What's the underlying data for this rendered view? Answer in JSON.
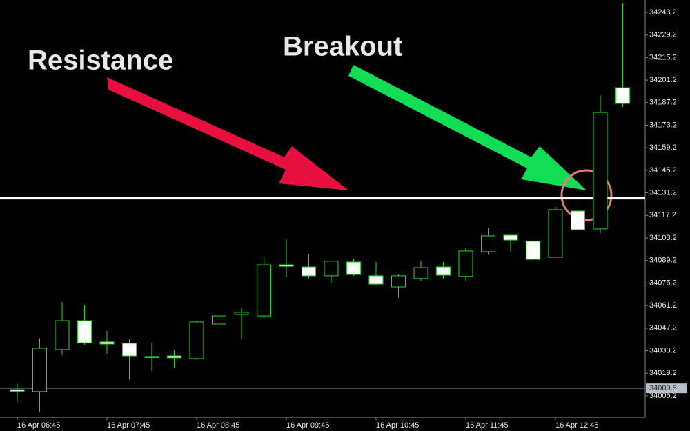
{
  "chart_data": {
    "type": "candlestick",
    "categories": [
      "16 Apr 06:45",
      null,
      null,
      null,
      "16 Apr 07:45",
      null,
      null,
      null,
      "16 Apr 08:45",
      null,
      null,
      null,
      "16 Apr 09:45",
      null,
      null,
      null,
      "16 Apr 10:45",
      null,
      null,
      null,
      "16 Apr 11:45",
      null,
      null,
      null,
      "16 Apr 12:45",
      null,
      null,
      null
    ],
    "open": [
      34009.0,
      34007.8,
      34033.9,
      34051.8,
      34038.6,
      34037.7,
      34029.6,
      34030.0,
      34028.3,
      34049.7,
      34055.7,
      34054.8,
      34086.5,
      34085.2,
      34079.7,
      34088.2,
      34079.7,
      34072.8,
      34078.0,
      34085.2,
      34079.3,
      34094.7,
      34104.9,
      34101.1,
      34091.2,
      34119.9,
      34108.8,
      34196.5
    ],
    "high": [
      34012.5,
      34041.1,
      34063.4,
      34061.3,
      34045.4,
      34040.3,
      34038.1,
      34033.4,
      34051.8,
      34056.1,
      34059.5,
      34091.7,
      34102.4,
      34093.4,
      34088.7,
      34090.0,
      34088.2,
      34080.5,
      34089.1,
      34088.2,
      34096.8,
      34109.2,
      34104.9,
      34101.9,
      34122.5,
      34126.8,
      34191.8,
      34248.8
    ],
    "low": [
      34001.3,
      33995.3,
      34030.4,
      34036.9,
      34031.3,
      34015.4,
      34020.6,
      34022.7,
      34027.4,
      34044.1,
      34040.3,
      34054.4,
      34078.8,
      34078.0,
      34075.4,
      34079.7,
      34074.1,
      34066.0,
      34076.2,
      34078.0,
      34076.2,
      34092.9,
      34094.7,
      34089.1,
      34091.2,
      34107.5,
      34106.2,
      34184.6
    ],
    "close": [
      34008.0,
      34034.7,
      34051.8,
      34038.1,
      34037.3,
      34030.0,
      34029.2,
      34028.8,
      34051.0,
      34054.8,
      34057.0,
      34086.5,
      34085.6,
      34079.7,
      34088.7,
      34080.5,
      34074.5,
      34079.7,
      34084.8,
      34080.1,
      34095.1,
      34104.5,
      34101.9,
      34089.9,
      34120.8,
      34108.4,
      34181.1,
      34186.7
    ],
    "up_color": "#22dd22",
    "down_color": "#ffffff",
    "ylim": [
      33991.9,
      34250.9
    ],
    "yticks": [
      34005.2,
      34019.2,
      34033.2,
      34047.2,
      34061.2,
      34075.2,
      34089.2,
      34103.2,
      34117.2,
      34131.2,
      34145.2,
      34159.2,
      34173.2,
      34187.2,
      34201.2,
      34215.2,
      34229.2,
      34243.2
    ],
    "current_price": 34009.8,
    "resistance": 34128.0,
    "annotations": [
      {
        "text": "Resistance",
        "color": "#e8103f"
      },
      {
        "text": "Breakout",
        "color": "#11dd55"
      }
    ]
  }
}
